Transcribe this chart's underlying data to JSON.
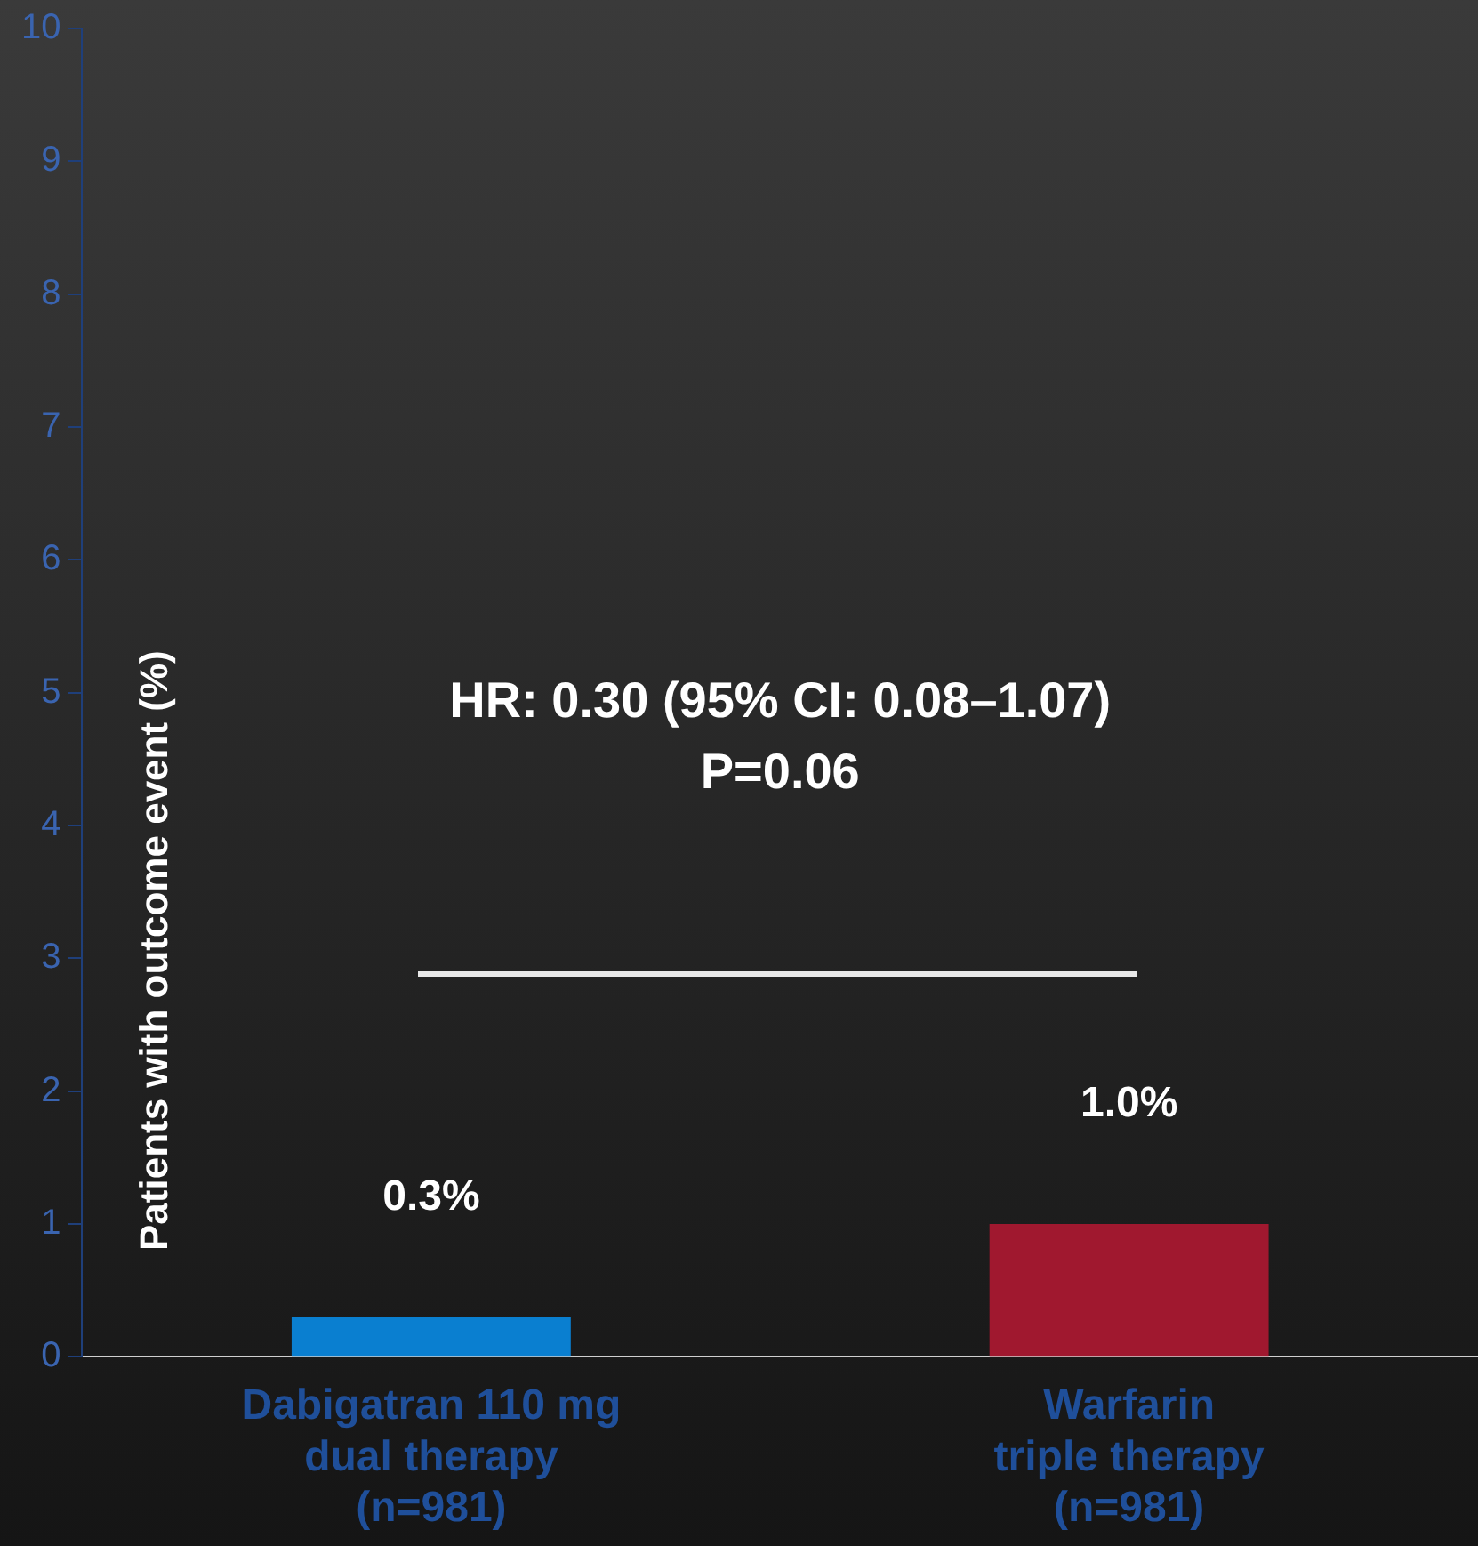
{
  "chart_data": {
    "type": "bar",
    "ylabel": "Patients with outcome event (%)",
    "categories": [
      "Dabigatran 110 mg\ndual therapy\n(n=981)",
      "Warfarin\ntriple therapy\n(n=981)"
    ],
    "values": [
      0.3,
      1.0
    ],
    "colors": [
      "#0a7fd0",
      "#a0182f"
    ],
    "value_labels": [
      "0.3%",
      "1.0%"
    ],
    "ylim": [
      0,
      10
    ],
    "yticks": [
      0,
      1,
      2,
      3,
      4,
      5,
      6,
      7,
      8,
      9,
      10
    ],
    "annotations": [
      "HR: 0.30 (95% CI: 0.08–1.07)",
      "P=0.06"
    ],
    "grid": false,
    "legend": false
  }
}
